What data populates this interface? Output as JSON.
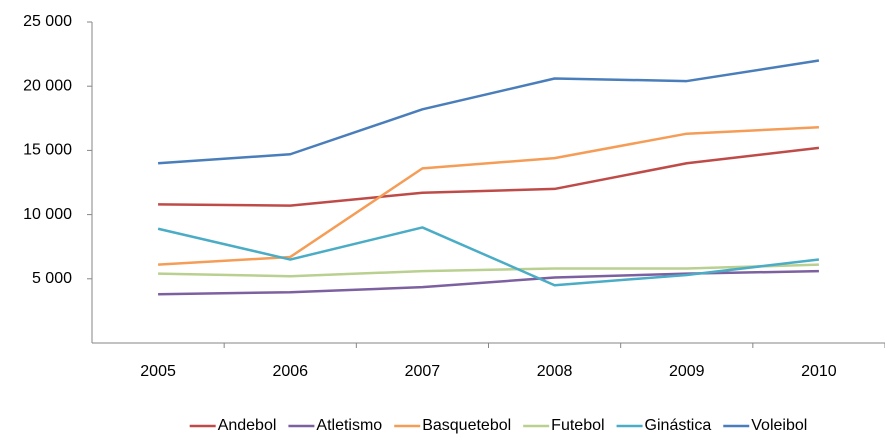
{
  "chart_data": {
    "type": "line",
    "categories": [
      "2005",
      "2006",
      "2007",
      "2008",
      "2009",
      "2010"
    ],
    "series": [
      {
        "name": "Andebol",
        "color": "#be4b48",
        "values": [
          10800,
          10700,
          11700,
          12000,
          14000,
          15200
        ]
      },
      {
        "name": "Atletismo",
        "color": "#7d60a0",
        "values": [
          3800,
          3950,
          4350,
          5100,
          5400,
          5600
        ]
      },
      {
        "name": "Basquetebol",
        "color": "#f59d56",
        "values": [
          6100,
          6700,
          13600,
          14400,
          16300,
          16800
        ]
      },
      {
        "name": "Futebol",
        "color": "#b9d090",
        "values": [
          5400,
          5200,
          5600,
          5800,
          5800,
          6100
        ]
      },
      {
        "name": "Ginástica",
        "color": "#4bacc6",
        "values": [
          8900,
          6500,
          9000,
          4500,
          5300,
          6500
        ]
      },
      {
        "name": "Voleibol",
        "color": "#4a7ebb",
        "values": [
          14000,
          14700,
          18200,
          20600,
          20400,
          22000
        ]
      }
    ],
    "ylim": [
      0,
      25000
    ],
    "yticks": [
      {
        "value": 5000,
        "label": "5 000"
      },
      {
        "value": 10000,
        "label": "10 000"
      },
      {
        "value": 15000,
        "label": "15 000"
      },
      {
        "value": 20000,
        "label": "20 000"
      },
      {
        "value": 25000,
        "label": "25 000"
      }
    ],
    "grid": false,
    "legend": "bottom"
  }
}
